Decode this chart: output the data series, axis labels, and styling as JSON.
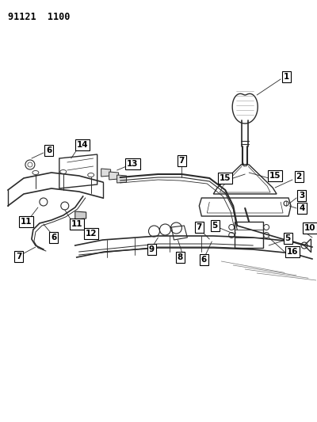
{
  "title": "91121  1100",
  "bg_color": "#ffffff",
  "lc": "#2a2a2a",
  "fig_w": 4.0,
  "fig_h": 5.33,
  "dpi": 100
}
